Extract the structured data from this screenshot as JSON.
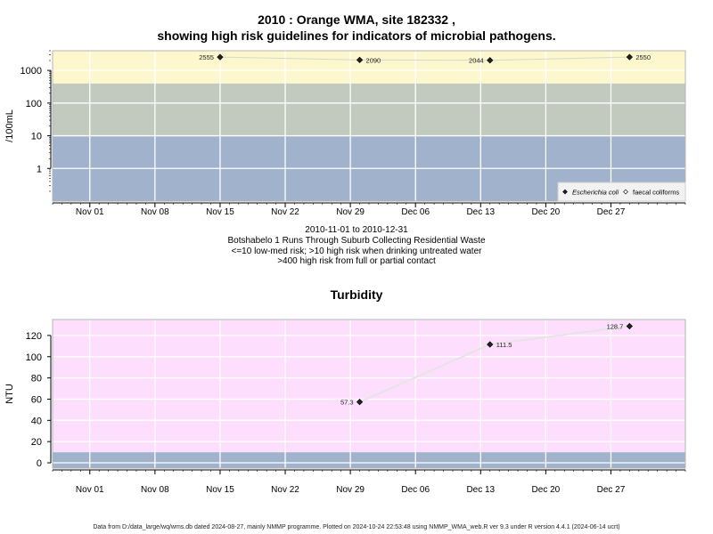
{
  "title_line1": "2010 : Orange WMA, site 182332 ,",
  "title_line2": "showing high risk guidelines for indicators of microbial pathogens.",
  "caption": {
    "date_range": "2010-11-01 to 2010-12-31",
    "site_description": "Botshabelo 1 Runs Through Suburb Collecting Residential Waste",
    "guideline1": "<=10 low-med risk; >10 high risk when drinking untreated water",
    "guideline2": ">400 high risk from full or partial contact"
  },
  "footer": "Data from D:/data_large/wq/wms.db dated 2024-08-27, mainly NMMP programme. Plotted on 2024-10-24 22:53:48 using NMMP_WMA_web.R ver 9.3 under R version 4.4.1 (2024-06-14 ucrt)",
  "x_axis": {
    "start": "2010-10-28",
    "end": "2011-01-04",
    "tick_labels": [
      "Nov 01",
      "Nov 08",
      "Nov 15",
      "Nov 22",
      "Nov 29",
      "Dec 06",
      "Dec 13",
      "Dec 20",
      "Dec 27"
    ],
    "tick_dates": [
      "2010-11-01",
      "2010-11-08",
      "2010-11-15",
      "2010-11-22",
      "2010-11-29",
      "2010-12-06",
      "2010-12-13",
      "2010-12-20",
      "2010-12-27"
    ]
  },
  "chart_data": [
    {
      "type": "line",
      "title": "",
      "ylabel": "/100mL",
      "y_scale": "log10",
      "ylim": [
        0.1,
        4000
      ],
      "y_ticks": [
        1,
        10,
        100,
        1000
      ],
      "y_tick_labels": [
        "1",
        "10",
        "100",
        "1000"
      ],
      "risk_bands": [
        {
          "from": 0.1,
          "to": 10,
          "color": "#a0b2cc"
        },
        {
          "from": 10,
          "to": 400,
          "color": "#c2cabf"
        },
        {
          "from": 400,
          "to": 4000,
          "color": "#fdf7cd"
        }
      ],
      "legend": {
        "position": "bottom-right",
        "entries": [
          "Escherichia coli",
          "faecal coliforms"
        ]
      },
      "series": [
        {
          "name": "Escherichia coli",
          "marker": "filled-diamond",
          "x": [
            "2010-11-15",
            "2010-11-30",
            "2010-12-14",
            "2010-12-29"
          ],
          "values": [
            2555,
            2090,
            2044,
            2550
          ],
          "labels": [
            "2555",
            "2090",
            "2044",
            "2550"
          ]
        },
        {
          "name": "faecal coliforms",
          "marker": "open-diamond",
          "x": [],
          "values": []
        }
      ]
    },
    {
      "type": "line",
      "title": "Turbidity",
      "ylabel": "NTU",
      "ylim": [
        -5,
        135
      ],
      "y_ticks": [
        0,
        20,
        40,
        60,
        80,
        100,
        120
      ],
      "y_tick_labels": [
        "0",
        "20",
        "40",
        "60",
        "80",
        "100",
        "120"
      ],
      "risk_bands": [
        {
          "from": -5,
          "to": 10,
          "color": "#a0b2cc"
        },
        {
          "from": 10,
          "to": 135,
          "color": "#fddffd"
        }
      ],
      "series": [
        {
          "name": "",
          "marker": "filled-diamond",
          "x": [
            "2010-11-30",
            "2010-12-14",
            "2010-12-29"
          ],
          "values": [
            57.3,
            111.5,
            128.7
          ],
          "labels": [
            "57.3",
            "111.5",
            "128.7"
          ]
        }
      ]
    }
  ]
}
